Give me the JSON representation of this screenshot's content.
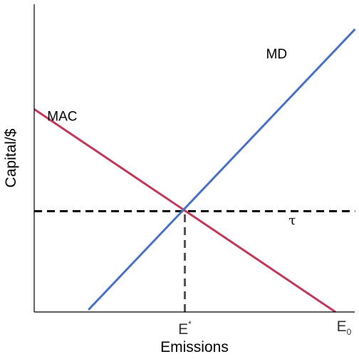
{
  "chart_data": {
    "type": "line",
    "title": "",
    "xlabel": "Emissions",
    "ylabel": "Capital/$",
    "xlim": [
      0,
      10
    ],
    "ylim": [
      0,
      10
    ],
    "grid": false,
    "legend": "none",
    "x_ticks": [
      {
        "x": 5.0,
        "label_main": "E",
        "label_sup": "*",
        "label_sub": ""
      },
      {
        "x": 10.0,
        "label_main": "E",
        "label_sup": "",
        "label_sub": "0"
      }
    ],
    "series": [
      {
        "label": "MAC",
        "color": "#c0395b",
        "style": "solid",
        "x": [
          0,
          10
        ],
        "y": [
          6.5,
          0
        ],
        "label_at": {
          "x": 1.0,
          "y": 6.2
        }
      },
      {
        "label": "MD",
        "color": "#4a72c4",
        "style": "solid",
        "x": [
          1.8,
          10
        ],
        "y": [
          0,
          8.4
        ],
        "label_at": {
          "x": 8.5,
          "y": 7.9
        }
      }
    ],
    "hlines": [
      {
        "label": "τ",
        "y": 3.23,
        "color": "#000000",
        "style": "dashed",
        "x_from": 0,
        "x_to": 10,
        "label_at": {
          "x": 8.4,
          "y": 2.9
        }
      }
    ],
    "vlines": [
      {
        "x": 5.0,
        "y_from": 0,
        "y_to": 3.23,
        "color": "#555555",
        "style": "dashed"
      }
    ]
  }
}
